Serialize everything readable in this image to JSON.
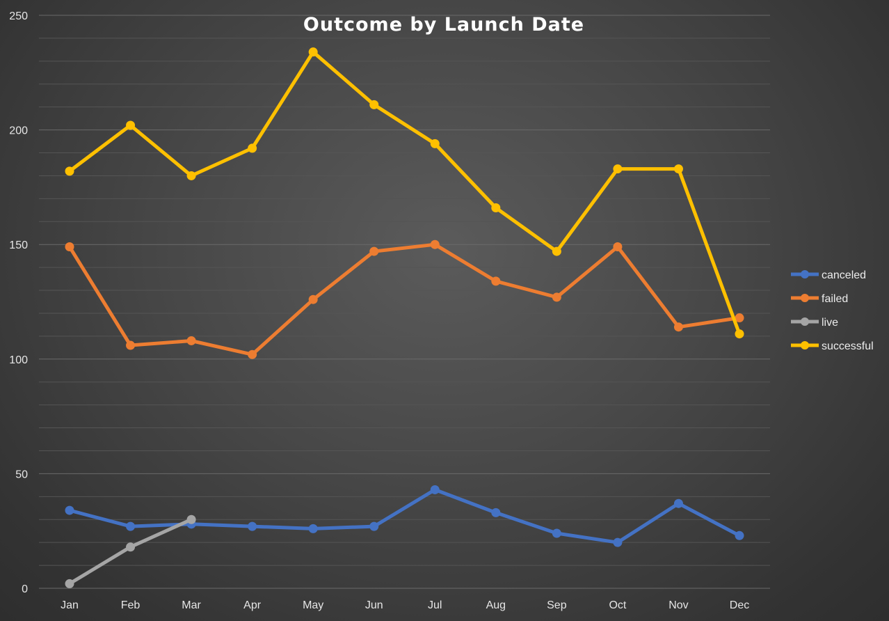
{
  "chart_data": {
    "type": "line",
    "title": "Outcome by Launch Date",
    "xlabel": "",
    "ylabel": "",
    "categories": [
      "Jan",
      "Feb",
      "Mar",
      "Apr",
      "May",
      "Jun",
      "Jul",
      "Aug",
      "Sep",
      "Oct",
      "Nov",
      "Dec"
    ],
    "ylim": [
      0,
      250
    ],
    "y_ticks": [
      0,
      50,
      100,
      150,
      200,
      250
    ],
    "y_tick_labels": [
      "0",
      "50",
      "100",
      "150",
      "200",
      "250"
    ],
    "y_minor_step": 10,
    "grid": true,
    "legend_position": "right",
    "series": [
      {
        "name": "canceled",
        "color": "#4472c4",
        "values": [
          34,
          27,
          28,
          27,
          26,
          27,
          43,
          33,
          24,
          20,
          37,
          23
        ]
      },
      {
        "name": "failed",
        "color": "#ed7d31",
        "values": [
          149,
          106,
          108,
          102,
          126,
          147,
          150,
          134,
          127,
          149,
          114,
          118
        ]
      },
      {
        "name": "live",
        "color": "#a5a5a5",
        "values": [
          2,
          18,
          30,
          null,
          null,
          null,
          null,
          null,
          null,
          null,
          null,
          null
        ]
      },
      {
        "name": "successful",
        "color": "#ffc000",
        "values": [
          182,
          202,
          180,
          192,
          234,
          211,
          194,
          166,
          147,
          183,
          183,
          111
        ]
      }
    ]
  }
}
